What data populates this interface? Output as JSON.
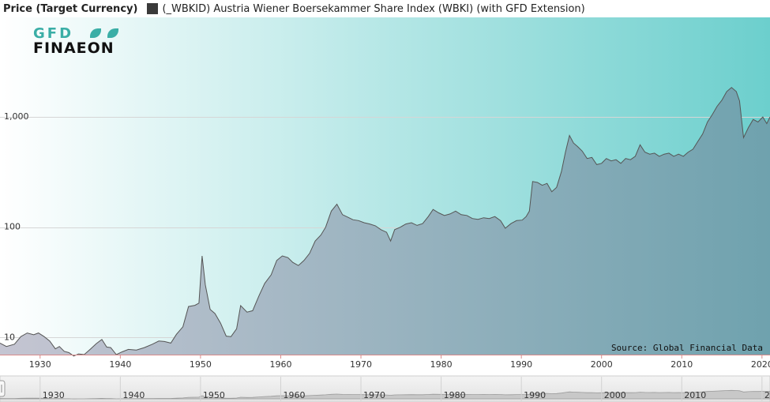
{
  "legend": {
    "yaxis_label": "Price (Target Currency)",
    "series_label": "(_WBKID) Austria Wiener Boersekammer Share Index (WBKI) (with GFD Extension)",
    "series_color": "#3a3a3a"
  },
  "logo": {
    "line1": "GFD",
    "line2": "FINAEON"
  },
  "source": "Source: Global Financial Data",
  "colors": {
    "bg_left": "#ffffff",
    "bg_right": "#6ccfcd",
    "fill_left": "#c5c5d2",
    "fill_right": "#6fa2ae",
    "line": "#555555",
    "teal": "#3aaea6"
  },
  "chart_data": {
    "type": "area",
    "yscale": "log",
    "ylim": [
      7,
      8000
    ],
    "xlim": [
      1925,
      2021
    ],
    "y_ticks": [
      10,
      100,
      1000
    ],
    "y_tick_labels": [
      "10",
      "100",
      "1,000"
    ],
    "x_ticks": [
      1930,
      1940,
      1950,
      1960,
      1970,
      1980,
      1990,
      2000,
      2010,
      2020
    ],
    "x_tick_labels": [
      "1930",
      "1940",
      "1950",
      "1960",
      "1970",
      "1980",
      "1990",
      "2000",
      "2010",
      "2020"
    ],
    "series": [
      {
        "name": "(_WBKID) Austria Wiener Boersekammer Share Index (WBKI) (with GFD Extension)",
        "points": [
          [
            1925,
            8.9
          ],
          [
            1925.8,
            8.3
          ],
          [
            1926.8,
            8.7
          ],
          [
            1927.6,
            10.2
          ],
          [
            1928.4,
            11.0
          ],
          [
            1929.2,
            10.6
          ],
          [
            1929.8,
            11.0
          ],
          [
            1930.5,
            10.2
          ],
          [
            1931.2,
            9.3
          ],
          [
            1931.9,
            7.9
          ],
          [
            1932.4,
            8.3
          ],
          [
            1933.0,
            7.5
          ],
          [
            1933.6,
            7.3
          ],
          [
            1934.2,
            6.8
          ],
          [
            1934.8,
            7.1
          ],
          [
            1935.5,
            7.0
          ],
          [
            1936.3,
            7.9
          ],
          [
            1937.0,
            8.8
          ],
          [
            1937.7,
            9.6
          ],
          [
            1938.3,
            8.2
          ],
          [
            1938.8,
            8.1
          ],
          [
            1939.5,
            7.0
          ],
          [
            1940.2,
            7.4
          ],
          [
            1941.0,
            7.8
          ],
          [
            1942.0,
            7.7
          ],
          [
            1943.0,
            8.1
          ],
          [
            1944.0,
            8.7
          ],
          [
            1944.8,
            9.3
          ],
          [
            1945.5,
            9.2
          ],
          [
            1946.3,
            8.9
          ],
          [
            1947.0,
            10.7
          ],
          [
            1947.8,
            12.5
          ],
          [
            1948.5,
            19.1
          ],
          [
            1949.3,
            19.6
          ],
          [
            1949.8,
            20.5
          ],
          [
            1950.2,
            55.0
          ],
          [
            1950.6,
            30.0
          ],
          [
            1951.2,
            18.0
          ],
          [
            1951.8,
            16.5
          ],
          [
            1952.5,
            13.5
          ],
          [
            1953.2,
            10.3
          ],
          [
            1953.8,
            10.2
          ],
          [
            1954.5,
            12.0
          ],
          [
            1955.0,
            19.5
          ],
          [
            1955.8,
            17.0
          ],
          [
            1956.5,
            17.5
          ],
          [
            1957.3,
            24.0
          ],
          [
            1958.0,
            31.0
          ],
          [
            1958.8,
            37.0
          ],
          [
            1959.5,
            50.0
          ],
          [
            1960.2,
            55.0
          ],
          [
            1960.9,
            53.0
          ],
          [
            1961.5,
            48.0
          ],
          [
            1962.2,
            45.0
          ],
          [
            1962.9,
            50.0
          ],
          [
            1963.6,
            58.0
          ],
          [
            1964.3,
            75.0
          ],
          [
            1965.0,
            85.0
          ],
          [
            1965.6,
            100.0
          ],
          [
            1966.3,
            140.0
          ],
          [
            1967.0,
            162.0
          ],
          [
            1967.7,
            130.0
          ],
          [
            1968.4,
            123.0
          ],
          [
            1969.0,
            117.0
          ],
          [
            1969.7,
            115.0
          ],
          [
            1970.4,
            110.0
          ],
          [
            1971.1,
            107.0
          ],
          [
            1971.8,
            103.0
          ],
          [
            1972.5,
            95.0
          ],
          [
            1973.2,
            90.0
          ],
          [
            1973.7,
            75.0
          ],
          [
            1974.2,
            95.0
          ],
          [
            1974.9,
            100.0
          ],
          [
            1975.6,
            107.0
          ],
          [
            1976.3,
            110.0
          ],
          [
            1977.0,
            104.0
          ],
          [
            1977.7,
            108.0
          ],
          [
            1978.4,
            125.0
          ],
          [
            1979.0,
            145.0
          ],
          [
            1979.7,
            135.0
          ],
          [
            1980.4,
            128.0
          ],
          [
            1981.1,
            132.0
          ],
          [
            1981.8,
            140.0
          ],
          [
            1982.5,
            130.0
          ],
          [
            1983.2,
            128.0
          ],
          [
            1983.9,
            120.0
          ],
          [
            1984.6,
            118.0
          ],
          [
            1985.3,
            122.0
          ],
          [
            1986.0,
            120.0
          ],
          [
            1986.7,
            125.0
          ],
          [
            1987.4,
            115.0
          ],
          [
            1988.0,
            98.0
          ],
          [
            1988.7,
            108.0
          ],
          [
            1989.4,
            115.0
          ],
          [
            1990.1,
            116.0
          ],
          [
            1990.6,
            125.0
          ],
          [
            1991.0,
            140.0
          ],
          [
            1991.4,
            260.0
          ],
          [
            1992.0,
            255.0
          ],
          [
            1992.6,
            240.0
          ],
          [
            1993.2,
            250.0
          ],
          [
            1993.8,
            210.0
          ],
          [
            1994.4,
            230.0
          ],
          [
            1995.0,
            320.0
          ],
          [
            1995.5,
            480.0
          ],
          [
            1996.0,
            680.0
          ],
          [
            1996.5,
            580.0
          ],
          [
            1997.0,
            540.0
          ],
          [
            1997.6,
            490.0
          ],
          [
            1998.2,
            420.0
          ],
          [
            1998.8,
            430.0
          ],
          [
            1999.4,
            370.0
          ],
          [
            2000.0,
            380.0
          ],
          [
            2000.6,
            420.0
          ],
          [
            2001.2,
            400.0
          ],
          [
            2001.8,
            410.0
          ],
          [
            2002.4,
            380.0
          ],
          [
            2003.0,
            420.0
          ],
          [
            2003.6,
            410.0
          ],
          [
            2004.2,
            440.0
          ],
          [
            2004.8,
            560.0
          ],
          [
            2005.4,
            480.0
          ],
          [
            2006.0,
            460.0
          ],
          [
            2006.6,
            470.0
          ],
          [
            2007.2,
            440.0
          ],
          [
            2007.8,
            460.0
          ],
          [
            2008.4,
            470.0
          ],
          [
            2009.0,
            440.0
          ],
          [
            2009.6,
            460.0
          ],
          [
            2010.2,
            440.0
          ],
          [
            2010.8,
            480.0
          ],
          [
            2011.4,
            510.0
          ],
          [
            2012.0,
            600.0
          ],
          [
            2012.6,
            700.0
          ],
          [
            2013.2,
            900.0
          ],
          [
            2013.8,
            1050.0
          ],
          [
            2014.4,
            1250.0
          ],
          [
            2015.0,
            1420.0
          ],
          [
            2015.6,
            1700.0
          ],
          [
            2016.2,
            1850.0
          ],
          [
            2016.8,
            1700.0
          ],
          [
            2017.2,
            1400.0
          ],
          [
            2017.7,
            650.0
          ],
          [
            2018.3,
            800.0
          ],
          [
            2018.9,
            950.0
          ],
          [
            2019.5,
            900.0
          ],
          [
            2020.1,
            1000.0
          ],
          [
            2020.6,
            870.0
          ],
          [
            2021.0,
            1000.0
          ]
        ]
      }
    ]
  }
}
